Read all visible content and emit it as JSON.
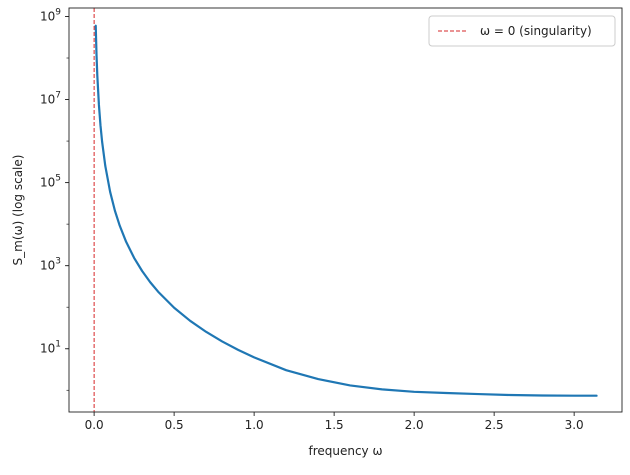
{
  "chart_data": {
    "type": "line",
    "title": "",
    "xlabel": "frequency ω",
    "ylabel": "S_m(ω) (log scale)",
    "xlim": [
      -0.157,
      3.299
    ],
    "ylim": [
      0.3,
      1600000000.0
    ],
    "y_scale": "log",
    "grid": false,
    "legend_position": "top-right",
    "x_ticks": [
      0.0,
      0.5,
      1.0,
      1.5,
      2.0,
      2.5,
      3.0
    ],
    "x_tick_labels": [
      "0.0",
      "0.5",
      "1.0",
      "1.5",
      "2.0",
      "2.5",
      "3.0"
    ],
    "y_ticks": [
      10,
      1000,
      100000,
      10000000,
      1000000000
    ],
    "y_tick_labels": [
      {
        "base": "10",
        "exp": "1"
      },
      {
        "base": "10",
        "exp": "3"
      },
      {
        "base": "10",
        "exp": "5"
      },
      {
        "base": "10",
        "exp": "7"
      },
      {
        "base": "10",
        "exp": "9"
      }
    ],
    "series": [
      {
        "color": "#1f77b4",
        "style": "solid",
        "x": [
          0.01,
          0.015,
          0.02,
          0.03,
          0.04,
          0.05,
          0.07,
          0.1,
          0.13,
          0.16,
          0.2,
          0.25,
          0.3,
          0.35,
          0.4,
          0.5,
          0.6,
          0.7,
          0.8,
          0.9,
          1.0,
          1.2,
          1.4,
          1.6,
          1.8,
          2.0,
          2.2,
          2.4,
          2.6,
          2.8,
          3.0,
          3.14
        ],
        "y": [
          600000000,
          118000000,
          37500000,
          7400000,
          2340000,
          960000,
          250000,
          60000,
          21000,
          9200,
          3760,
          1540,
          745,
          402,
          236,
          97,
          47,
          25.5,
          15.0,
          9.4,
          6.2,
          3.05,
          1.86,
          1.31,
          1.05,
          0.92,
          0.86,
          0.81,
          0.77,
          0.75,
          0.74,
          0.74
        ]
      },
      {
        "name": "ω = 0 (singularity)",
        "color": "#d62728",
        "style": "dashed",
        "vertical_line_x": 0.0
      }
    ],
    "legend": [
      {
        "label": "ω = 0 (singularity)",
        "color": "#d62728",
        "style": "dashed"
      }
    ]
  }
}
